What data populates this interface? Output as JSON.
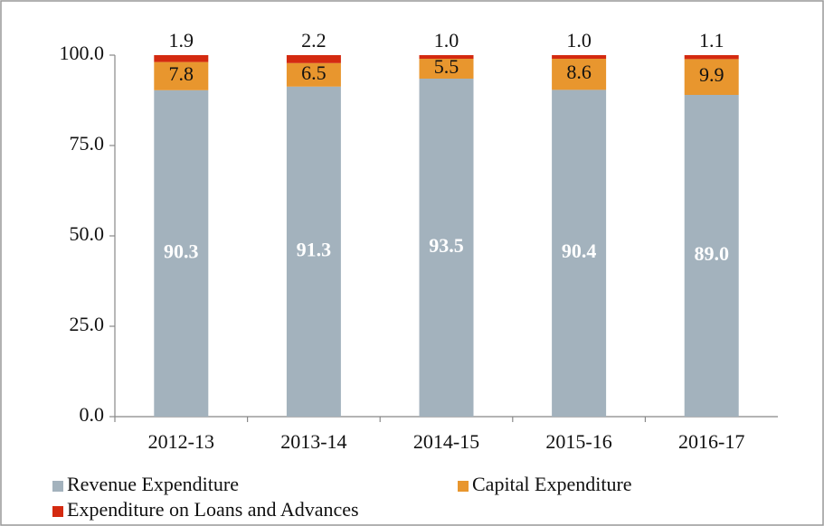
{
  "chart_data": {
    "type": "stacked_bar",
    "categories": [
      "2012-13",
      "2013-14",
      "2014-15",
      "2015-16",
      "2016-17"
    ],
    "series": [
      {
        "name": "Revenue Expenditure",
        "color": "#a3b2bd",
        "values": [
          90.3,
          91.3,
          93.5,
          90.4,
          89.0
        ],
        "value_labels": [
          "90.3",
          "91.3",
          "93.5",
          "90.4",
          "89.0"
        ]
      },
      {
        "name": "Capital Expenditure",
        "color": "#e8962e",
        "values": [
          7.8,
          6.5,
          5.5,
          8.6,
          9.9
        ],
        "value_labels": [
          "7.8",
          "6.5",
          "5.5",
          "8.6",
          "9.9"
        ]
      },
      {
        "name": "Expenditure on Loans and Advances",
        "color": "#d42a10",
        "values": [
          1.9,
          2.2,
          1.0,
          1.0,
          1.1
        ],
        "value_labels": [
          "1.9",
          "2.2",
          "1.0",
          "1.0",
          "1.1"
        ]
      }
    ],
    "ylim": [
      0,
      100
    ],
    "yticks": [
      {
        "value": 0,
        "label": "0.0"
      },
      {
        "value": 25,
        "label": "25.0"
      },
      {
        "value": 50,
        "label": "50.0"
      },
      {
        "value": 75,
        "label": "75.0"
      },
      {
        "value": 100,
        "label": "100.0"
      }
    ],
    "grid": false,
    "legend": "bottom"
  }
}
